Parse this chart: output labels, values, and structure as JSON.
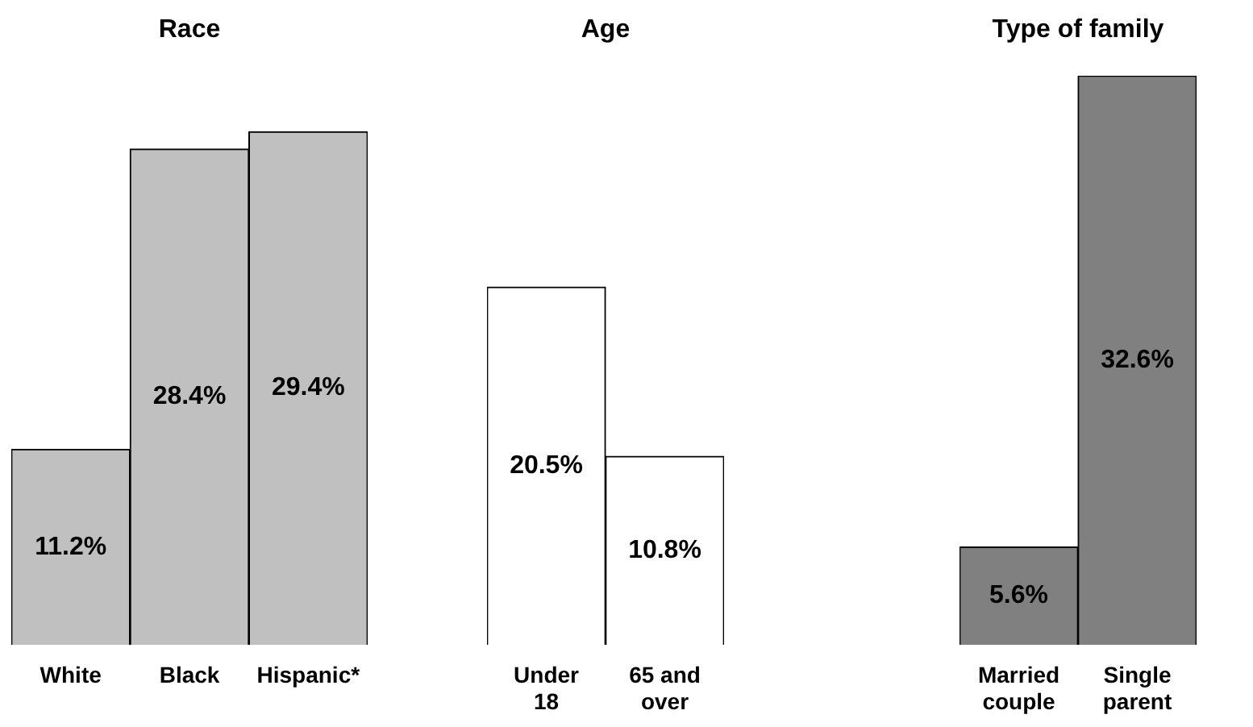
{
  "chart_data": [
    {
      "type": "bar",
      "title": "Race",
      "categories": [
        "White",
        "Black",
        "Hispanic*"
      ],
      "values": [
        11.2,
        28.4,
        29.4
      ],
      "color": "#c0c0c0",
      "value_labels": [
        "11.2%",
        "28.4%",
        "29.4%"
      ]
    },
    {
      "type": "bar",
      "title": "Age",
      "categories": [
        "Under 18",
        "65 and over"
      ],
      "values": [
        20.5,
        10.8
      ],
      "color": "#ffffff",
      "value_labels": [
        "20.5%",
        "10.8%"
      ]
    },
    {
      "type": "bar",
      "title": "Type of family",
      "categories": [
        "Married couple",
        "Single parent"
      ],
      "values": [
        5.6,
        32.6
      ],
      "color": "#808080",
      "value_labels": [
        "5.6%",
        "32.6%"
      ]
    }
  ]
}
